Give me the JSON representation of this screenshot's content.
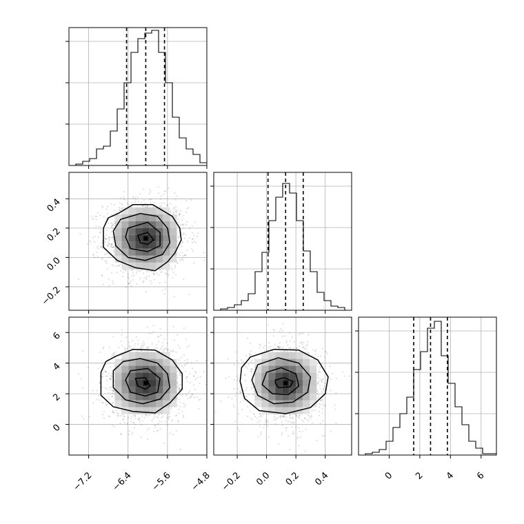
{
  "chart_data": {
    "type": "corner",
    "grid": true,
    "colors": {
      "line": "#000000",
      "grid": "#b0b0b0",
      "samples": "#9a9a9a",
      "density_max": "#000000"
    },
    "parameters": [
      {
        "range": [
          -7.6,
          -4.8
        ],
        "ticks": [
          -7.2,
          -6.4,
          -5.6,
          -4.8
        ],
        "tick_labels": [
          "−7.2",
          "−6.4",
          "−5.6",
          "−4.8"
        ],
        "quantiles": [
          -6.43,
          -6.04,
          -5.66
        ],
        "peak": -6.04
      },
      {
        "range": [
          -0.36,
          0.58
        ],
        "ticks": [
          -0.2,
          0.0,
          0.2,
          0.4
        ],
        "tick_labels": [
          "−0.2",
          "0.0",
          "0.2",
          "0.4"
        ],
        "quantiles": [
          0.01,
          0.13,
          0.25
        ],
        "peak": 0.13
      },
      {
        "range": [
          -2.0,
          7.0
        ],
        "ticks": [
          0,
          2,
          4,
          6
        ],
        "tick_labels": [
          "0",
          "2",
          "4",
          "6"
        ],
        "quantiles": [
          1.6,
          2.7,
          3.8
        ],
        "peak": 2.7
      }
    ],
    "histograms": [
      {
        "parameter": 0,
        "bin_edges": [
          -7.6,
          -7.46,
          -7.32,
          -7.18,
          -7.04,
          -6.9,
          -6.76,
          -6.62,
          -6.48,
          -6.34,
          -6.2,
          -6.06,
          -5.92,
          -5.78,
          -5.64,
          -5.5,
          -5.36,
          -5.22,
          -5.08,
          -4.94,
          -4.8
        ],
        "counts": [
          0.0,
          0.01,
          0.03,
          0.05,
          0.12,
          0.14,
          0.25,
          0.41,
          0.6,
          0.82,
          0.92,
          0.96,
          0.98,
          0.82,
          0.6,
          0.35,
          0.2,
          0.12,
          0.08,
          0.02
        ]
      },
      {
        "parameter": 1,
        "bin_edges": [
          -0.36,
          -0.313,
          -0.266,
          -0.219,
          -0.172,
          -0.125,
          -0.078,
          -0.031,
          0.016,
          0.063,
          0.11,
          0.157,
          0.204,
          0.251,
          0.298,
          0.345,
          0.392,
          0.439,
          0.486,
          0.533,
          0.58
        ],
        "counts": [
          0.0,
          0.01,
          0.02,
          0.04,
          0.07,
          0.12,
          0.28,
          0.42,
          0.65,
          0.82,
          0.92,
          0.85,
          0.65,
          0.43,
          0.28,
          0.13,
          0.07,
          0.03,
          0.02,
          0.0
        ]
      },
      {
        "parameter": 2,
        "bin_edges": [
          -2.0,
          -1.55,
          -1.1,
          -0.65,
          -0.2,
          0.25,
          0.7,
          1.15,
          1.6,
          2.05,
          2.5,
          2.95,
          3.4,
          3.85,
          4.3,
          4.75,
          5.2,
          5.65,
          6.1,
          6.55,
          7.0
        ],
        "counts": [
          0.0,
          0.01,
          0.02,
          0.04,
          0.1,
          0.2,
          0.3,
          0.42,
          0.62,
          0.75,
          0.92,
          0.97,
          0.72,
          0.52,
          0.35,
          0.22,
          0.1,
          0.05,
          0.01,
          0.01
        ]
      }
    ],
    "scatter_panels": [
      {
        "x_parameter": 0,
        "y_parameter": 1,
        "center": [
          -6.04,
          0.13
        ],
        "sigma": [
          0.37,
          0.115
        ],
        "density_grid": {
          "x_step": 0.14,
          "y_step": 0.047,
          "half_width": 4
        },
        "contours": [
          [
            [
              -6.6,
              0.3
            ],
            [
              -6.3,
              0.36
            ],
            [
              -5.9,
              0.36
            ],
            [
              -5.5,
              0.28
            ],
            [
              -5.35,
              0.2
            ],
            [
              -5.32,
              0.12
            ],
            [
              -5.45,
              0.03
            ],
            [
              -5.6,
              -0.03
            ],
            [
              -5.85,
              -0.09
            ],
            [
              -6.25,
              -0.07
            ],
            [
              -6.62,
              -0.02
            ],
            [
              -6.9,
              0.07
            ],
            [
              -6.9,
              0.2
            ],
            [
              -6.8,
              0.27
            ]
          ],
          [
            [
              -6.55,
              0.26
            ],
            [
              -6.15,
              0.3
            ],
            [
              -5.8,
              0.28
            ],
            [
              -5.6,
              0.2
            ],
            [
              -5.55,
              0.1
            ],
            [
              -5.7,
              0.02
            ],
            [
              -6.05,
              -0.02
            ],
            [
              -6.4,
              0.0
            ],
            [
              -6.65,
              0.08
            ],
            [
              -6.7,
              0.18
            ]
          ],
          [
            [
              -6.4,
              0.2
            ],
            [
              -6.0,
              0.24
            ],
            [
              -5.75,
              0.17
            ],
            [
              -5.75,
              0.08
            ],
            [
              -6.0,
              0.04
            ],
            [
              -6.35,
              0.06
            ],
            [
              -6.45,
              0.14
            ]
          ],
          [
            [
              -6.2,
              0.15
            ],
            [
              -6.0,
              0.17
            ],
            [
              -5.88,
              0.12
            ],
            [
              -6.0,
              0.09
            ],
            [
              -6.15,
              0.1
            ]
          ]
        ]
      },
      {
        "x_parameter": 0,
        "y_parameter": 2,
        "center": [
          -6.04,
          2.7
        ],
        "sigma": [
          0.37,
          1.1
        ],
        "density_grid": {
          "x_step": 0.14,
          "y_step": 0.45,
          "half_width": 4
        },
        "contours": [
          [
            [
              -6.65,
              4.45
            ],
            [
              -6.3,
              4.9
            ],
            [
              -5.85,
              4.85
            ],
            [
              -5.5,
              4.2
            ],
            [
              -5.3,
              3.3
            ],
            [
              -5.3,
              2.3
            ],
            [
              -5.55,
              1.4
            ],
            [
              -5.85,
              0.75
            ],
            [
              -6.3,
              0.85
            ],
            [
              -6.7,
              1.15
            ],
            [
              -6.95,
              1.9
            ],
            [
              -6.95,
              3.4
            ],
            [
              -6.85,
              4.1
            ]
          ],
          [
            [
              -6.5,
              4.1
            ],
            [
              -6.15,
              4.3
            ],
            [
              -5.8,
              4.0
            ],
            [
              -5.6,
              3.3
            ],
            [
              -5.55,
              2.4
            ],
            [
              -5.75,
              1.65
            ],
            [
              -6.1,
              1.35
            ],
            [
              -6.45,
              1.6
            ],
            [
              -6.7,
              2.4
            ],
            [
              -6.7,
              3.5
            ]
          ],
          [
            [
              -6.35,
              3.5
            ],
            [
              -6.0,
              3.65
            ],
            [
              -5.75,
              3.0
            ],
            [
              -5.8,
              2.1
            ],
            [
              -6.05,
              1.85
            ],
            [
              -6.35,
              2.1
            ],
            [
              -6.45,
              2.9
            ]
          ],
          [
            [
              -6.25,
              3.0
            ],
            [
              -6.05,
              3.05
            ],
            [
              -5.95,
              2.5
            ],
            [
              -6.05,
              2.3
            ],
            [
              -6.2,
              2.5
            ]
          ]
        ]
      },
      {
        "x_parameter": 1,
        "y_parameter": 2,
        "center": [
          0.13,
          2.7
        ],
        "sigma": [
          0.115,
          1.1
        ],
        "density_grid": {
          "x_step": 0.047,
          "y_step": 0.45,
          "half_width": 4
        },
        "contours": [
          [
            [
              -0.11,
              4.4
            ],
            [
              0.05,
              4.9
            ],
            [
              0.22,
              4.85
            ],
            [
              0.35,
              4.2
            ],
            [
              0.42,
              3.1
            ],
            [
              0.4,
              2.0
            ],
            [
              0.3,
              1.1
            ],
            [
              0.13,
              0.7
            ],
            [
              -0.05,
              0.9
            ],
            [
              -0.15,
              1.7
            ],
            [
              -0.18,
              2.8
            ],
            [
              -0.17,
              3.7
            ]
          ],
          [
            [
              -0.06,
              3.9
            ],
            [
              0.08,
              4.35
            ],
            [
              0.22,
              4.0
            ],
            [
              0.3,
              3.1
            ],
            [
              0.28,
              2.1
            ],
            [
              0.18,
              1.45
            ],
            [
              0.05,
              1.35
            ],
            [
              -0.06,
              1.9
            ],
            [
              -0.1,
              2.9
            ]
          ],
          [
            [
              0.0,
              3.4
            ],
            [
              0.1,
              3.7
            ],
            [
              0.2,
              3.3
            ],
            [
              0.22,
              2.5
            ],
            [
              0.15,
              1.95
            ],
            [
              0.04,
              2.0
            ],
            [
              -0.03,
              2.6
            ]
          ],
          [
            [
              0.06,
              2.9
            ],
            [
              0.12,
              3.05
            ],
            [
              0.18,
              2.8
            ],
            [
              0.16,
              2.45
            ],
            [
              0.08,
              2.4
            ],
            [
              0.06,
              2.7
            ]
          ]
        ]
      }
    ]
  }
}
